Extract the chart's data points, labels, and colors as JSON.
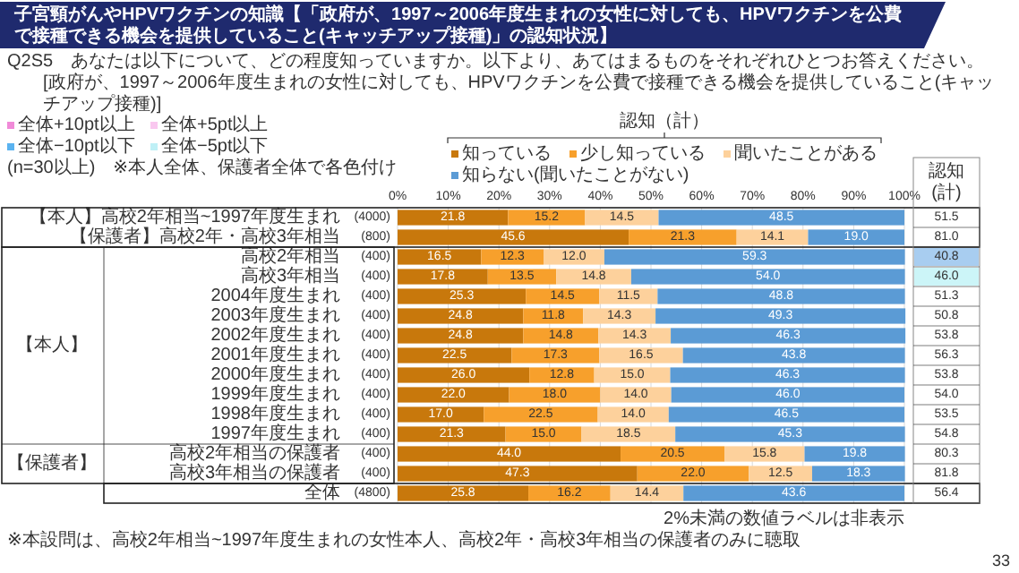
{
  "chart_data": {
    "type": "bar",
    "orientation": "horizontal",
    "stacked": true,
    "grid": "x",
    "legend": "top",
    "title": "子宮頸がんやHPVワクチンの知識【「政府が、1997～2006年度生まれの女性に対しても、HPVワクチンを公費で接種できる機会を提供していること(キャッチアップ接種)」の認知状況】",
    "subtitle": "Q2S5　あなたは以下について、どの程度知っていますか。以下より、あてはまるものをそれぞれひとつお答えください。",
    "categories": [
      "【本人】高校2年相当~1997年度生まれ　(4000)",
      "【保護者】高校2年・高校3年相当　(800)",
      "高校2年相当　(400)",
      "高校3年相当　(400)",
      "2004年度生まれ　(400)",
      "2003年度生まれ　(400)",
      "2002年度生まれ　(400)",
      "2001年度生まれ　(400)",
      "2000年度生まれ　(400)",
      "1999年度生まれ　(400)",
      "1998年度生まれ　(400)",
      "1997年度生まれ　(400)",
      "高校2年相当の保護者　(400)",
      "高校3年相当の保護者　(400)",
      "全体　(4800)"
    ],
    "xlim": [
      0,
      100
    ],
    "xticks": [
      {
        "value": 0,
        "label": "0%"
      },
      {
        "value": 10,
        "label": "10%"
      },
      {
        "value": 20,
        "label": "20%"
      },
      {
        "value": 30,
        "label": "30%"
      },
      {
        "value": 40,
        "label": "40%"
      },
      {
        "value": 50,
        "label": "50%"
      },
      {
        "value": 60,
        "label": "60%"
      },
      {
        "value": 70,
        "label": "70%"
      },
      {
        "value": 80,
        "label": "80%"
      },
      {
        "value": 90,
        "label": "90%"
      },
      {
        "value": 100,
        "label": "100%"
      }
    ],
    "series": [
      {
        "name": "知っている",
        "color": "#c8780c",
        "values": [
          21.8,
          45.6,
          16.5,
          17.8,
          25.3,
          24.8,
          24.8,
          22.5,
          26.0,
          22.0,
          17.0,
          21.3,
          44.0,
          47.3,
          25.8
        ],
        "value_labels": [
          "21.8",
          "45.6",
          "16.5",
          "17.8",
          "25.3",
          "24.8",
          "24.8",
          "22.5",
          "26.0",
          "22.0",
          "17.0",
          "21.3",
          "44.0",
          "47.3",
          "25.8"
        ]
      },
      {
        "name": "少し知っている",
        "color": "#f7a02c",
        "values": [
          15.2,
          21.3,
          12.3,
          13.5,
          14.5,
          11.8,
          14.8,
          17.3,
          12.8,
          18.0,
          22.5,
          15.0,
          20.5,
          22.0,
          16.2
        ],
        "value_labels": [
          "15.2",
          "21.3",
          "12.3",
          "13.5",
          "14.5",
          "11.8",
          "14.8",
          "17.3",
          "12.8",
          "18.0",
          "22.5",
          "15.0",
          "20.5",
          "22.0",
          "16.2"
        ]
      },
      {
        "name": "聞いたことがある",
        "color": "#fdd19c",
        "values": [
          14.5,
          14.1,
          12.0,
          14.8,
          11.5,
          14.3,
          14.3,
          16.5,
          15.0,
          14.0,
          14.0,
          18.5,
          15.8,
          12.5,
          14.4
        ],
        "value_labels": [
          "14.5",
          "14.1",
          "12.0",
          "14.8",
          "11.5",
          "14.3",
          "14.3",
          "16.5",
          "15.0",
          "14.0",
          "14.0",
          "18.5",
          "15.8",
          "12.5",
          "14.4"
        ]
      },
      {
        "name": "知らない(聞いたことがない)",
        "color": "#5b9bd5",
        "values": [
          48.5,
          19.0,
          59.3,
          54.0,
          48.8,
          49.3,
          46.3,
          43.8,
          46.3,
          46.0,
          46.5,
          45.3,
          19.8,
          18.3,
          43.6
        ],
        "value_labels": [
          "48.5",
          "19.0",
          "59.3",
          "54.0",
          "48.8",
          "49.3",
          "46.3",
          "43.8",
          "46.3",
          "46.0",
          "46.5",
          "45.3",
          "19.8",
          "18.3",
          "43.6"
        ]
      }
    ],
    "annotations": [
      "全体+10pt以上",
      "全体+5pt以上",
      "全体−10pt以下",
      "全体−5pt以下",
      "(n=30以上)　※本人全体、保護者全体で各色付け",
      "認知（計）",
      "認知(計)",
      "【本人】",
      "【保護者】",
      "2%未満の数値ラベルは非表示",
      "※本設問は、高校2年相当~1997年度生まれの女性本人、高校2年・高校3年相当の保護者のみに聴取",
      "33",
      "[政府が、1997～2006年度生まれの女性に対しても、HPVワクチンを公費で接種できる機会を提供していること(キャッチアップ接種)]",
      "51.5",
      "81.0",
      "40.8",
      "46.0",
      "51.3",
      "50.8",
      "53.8",
      "56.3",
      "53.8",
      "54.0",
      "53.5",
      "54.8",
      "80.3",
      "81.8",
      "56.4"
    ]
  }
}
